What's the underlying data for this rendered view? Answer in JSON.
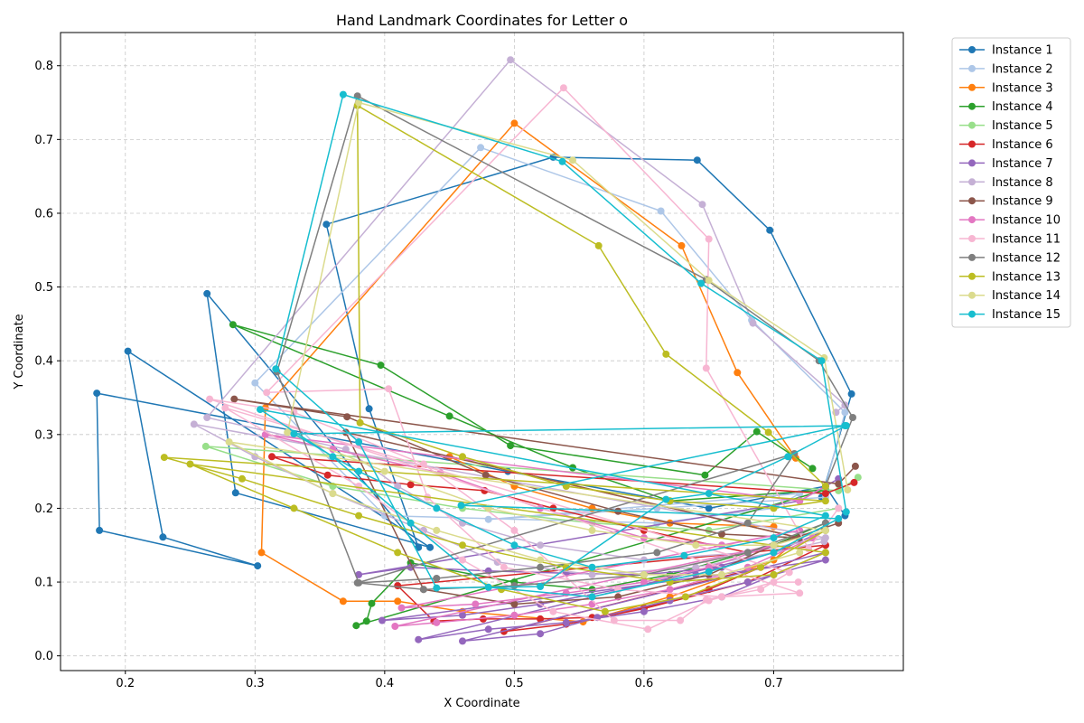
{
  "chart_data": {
    "type": "line",
    "title": "Hand Landmark Coordinates for Letter o",
    "xlabel": "X Coordinate",
    "ylabel": "Y Coordinate",
    "xlim": [
      0.15,
      0.8
    ],
    "ylim": [
      -0.02,
      0.845
    ],
    "xticks": [
      0.2,
      0.3,
      0.4,
      0.5,
      0.6,
      0.7
    ],
    "xtick_labels": [
      "0.2",
      "0.3",
      "0.4",
      "0.5",
      "0.6",
      "0.7"
    ],
    "yticks": [
      0.0,
      0.1,
      0.2,
      0.3,
      0.4,
      0.5,
      0.6,
      0.7,
      0.8
    ],
    "ytick_labels": [
      "0.0",
      "0.1",
      "0.2",
      "0.3",
      "0.4",
      "0.5",
      "0.6",
      "0.7",
      "0.8"
    ],
    "grid": true,
    "marker": "circle",
    "legend_position": "outside-right",
    "series": [
      {
        "name": "Instance 1",
        "color": "#1f77b4",
        "x": [
          0.737,
          0.76,
          0.697,
          0.641,
          0.53,
          0.355,
          0.388,
          0.426,
          0.263,
          0.285,
          0.435,
          0.202,
          0.229,
          0.302,
          0.18,
          0.178,
          0.495,
          0.65,
          0.74,
          0.755
        ],
        "y": [
          0.215,
          0.355,
          0.577,
          0.672,
          0.676,
          0.585,
          0.335,
          0.147,
          0.491,
          0.221,
          0.147,
          0.413,
          0.161,
          0.122,
          0.17,
          0.356,
          0.25,
          0.2,
          0.23,
          0.19
        ]
      },
      {
        "name": "Instance 2",
        "color": "#aec7e8",
        "x": [
          0.74,
          0.755,
          0.683,
          0.613,
          0.474,
          0.3,
          0.4,
          0.61,
          0.7,
          0.72,
          0.48,
          0.61,
          0.74
        ],
        "y": [
          0.23,
          0.33,
          0.455,
          0.603,
          0.689,
          0.37,
          0.19,
          0.18,
          0.2,
          0.22,
          0.185,
          0.2,
          0.215
        ]
      },
      {
        "name": "Instance 3",
        "color": "#ff7f0e",
        "x": [
          0.717,
          0.672,
          0.629,
          0.5,
          0.308,
          0.305,
          0.368,
          0.41,
          0.46,
          0.553,
          0.62,
          0.7,
          0.72,
          0.45,
          0.5,
          0.56,
          0.62,
          0.7
        ],
        "y": [
          0.268,
          0.384,
          0.556,
          0.722,
          0.336,
          0.14,
          0.074,
          0.074,
          0.06,
          0.046,
          0.08,
          0.13,
          0.16,
          0.27,
          0.23,
          0.2,
          0.18,
          0.175
        ]
      },
      {
        "name": "Instance 4",
        "color": "#2ca02c",
        "x": [
          0.73,
          0.687,
          0.647,
          0.497,
          0.397,
          0.283,
          0.45,
          0.545,
          0.62,
          0.74,
          0.378,
          0.386,
          0.39,
          0.42,
          0.5,
          0.56,
          0.62,
          0.7,
          0.74
        ],
        "y": [
          0.254,
          0.304,
          0.245,
          0.285,
          0.394,
          0.449,
          0.325,
          0.255,
          0.21,
          0.225,
          0.041,
          0.047,
          0.071,
          0.126,
          0.1,
          0.09,
          0.11,
          0.15,
          0.18
        ]
      },
      {
        "name": "Instance 5",
        "color": "#98df8a",
        "x": [
          0.765,
          0.75,
          0.262,
          0.36,
          0.46,
          0.56,
          0.65,
          0.75
        ],
        "y": [
          0.242,
          0.224,
          0.284,
          0.23,
          0.2,
          0.18,
          0.17,
          0.2
        ]
      },
      {
        "name": "Instance 6",
        "color": "#d62728",
        "x": [
          0.762,
          0.74,
          0.313,
          0.356,
          0.42,
          0.477,
          0.53,
          0.6,
          0.68,
          0.74,
          0.41,
          0.438,
          0.476,
          0.52,
          0.56,
          0.6,
          0.65,
          0.69,
          0.492,
          0.54,
          0.6,
          0.68,
          0.74
        ],
        "y": [
          0.235,
          0.22,
          0.27,
          0.245,
          0.232,
          0.224,
          0.2,
          0.17,
          0.14,
          0.15,
          0.095,
          0.047,
          0.05,
          0.05,
          0.052,
          0.065,
          0.09,
          0.12,
          0.033,
          0.043,
          0.064,
          0.1,
          0.15
        ]
      },
      {
        "name": "Instance 7",
        "color": "#9467bd",
        "x": [
          0.75,
          0.72,
          0.38,
          0.42,
          0.48,
          0.54,
          0.6,
          0.66,
          0.7,
          0.426,
          0.48,
          0.54,
          0.6,
          0.66,
          0.7,
          0.74,
          0.46,
          0.52,
          0.564,
          0.62,
          0.68,
          0.74,
          0.398,
          0.46,
          0.52,
          0.58,
          0.64,
          0.7,
          0.74
        ],
        "y": [
          0.24,
          0.21,
          0.11,
          0.12,
          0.115,
          0.112,
          0.11,
          0.12,
          0.14,
          0.022,
          0.036,
          0.045,
          0.06,
          0.08,
          0.11,
          0.14,
          0.02,
          0.03,
          0.052,
          0.075,
          0.1,
          0.13,
          0.048,
          0.055,
          0.07,
          0.09,
          0.11,
          0.14,
          0.17
        ]
      },
      {
        "name": "Instance 8",
        "color": "#c5b0d5",
        "x": [
          0.748,
          0.755,
          0.684,
          0.645,
          0.497,
          0.263,
          0.37,
          0.41,
          0.46,
          0.52,
          0.6,
          0.68,
          0.74,
          0.253,
          0.3,
          0.36,
          0.43,
          0.487,
          0.56,
          0.64,
          0.7,
          0.739
        ],
        "y": [
          0.33,
          0.34,
          0.451,
          0.612,
          0.808,
          0.323,
          0.28,
          0.23,
          0.18,
          0.15,
          0.13,
          0.14,
          0.16,
          0.314,
          0.27,
          0.22,
          0.17,
          0.127,
          0.11,
          0.12,
          0.14,
          0.155
        ]
      },
      {
        "name": "Instance 9",
        "color": "#8c564b",
        "x": [
          0.763,
          0.75,
          0.284,
          0.371,
          0.478,
          0.58,
          0.66,
          0.72,
          0.37,
          0.43,
          0.5,
          0.58,
          0.65,
          0.7,
          0.75
        ],
        "y": [
          0.257,
          0.233,
          0.348,
          0.324,
          0.245,
          0.196,
          0.165,
          0.16,
          0.303,
          0.09,
          0.07,
          0.08,
          0.11,
          0.15,
          0.18
        ]
      },
      {
        "name": "Instance 10",
        "color": "#e377c2",
        "x": [
          0.74,
          0.72,
          0.308,
          0.36,
          0.443,
          0.52,
          0.6,
          0.66,
          0.72,
          0.413,
          0.47,
          0.54,
          0.6,
          0.65,
          0.7,
          0.408,
          0.44,
          0.5,
          0.56,
          0.62,
          0.68,
          0.73
        ],
        "y": [
          0.23,
          0.21,
          0.3,
          0.28,
          0.248,
          0.2,
          0.16,
          0.15,
          0.17,
          0.065,
          0.07,
          0.085,
          0.1,
          0.12,
          0.15,
          0.04,
          0.045,
          0.055,
          0.07,
          0.09,
          0.12,
          0.16
        ]
      },
      {
        "name": "Instance 11",
        "color": "#f7b6d2",
        "x": [
          0.75,
          0.727,
          0.648,
          0.65,
          0.538,
          0.309,
          0.403,
          0.433,
          0.492,
          0.58,
          0.66,
          0.72,
          0.265,
          0.33,
          0.43,
          0.5,
          0.577,
          0.628,
          0.648,
          0.69,
          0.712,
          0.277,
          0.38,
          0.46,
          0.53,
          0.603,
          0.65,
          0.7,
          0.719
        ],
        "y": [
          0.2,
          0.145,
          0.39,
          0.565,
          0.77,
          0.357,
          0.362,
          0.215,
          0.12,
          0.09,
          0.08,
          0.085,
          0.348,
          0.33,
          0.26,
          0.17,
          0.048,
          0.048,
          0.076,
          0.09,
          0.113,
          0.336,
          0.23,
          0.13,
          0.06,
          0.036,
          0.075,
          0.1,
          0.1
        ]
      },
      {
        "name": "Instance 12",
        "color": "#7f7f7f",
        "x": [
          0.74,
          0.761,
          0.735,
          0.648,
          0.379,
          0.317,
          0.38,
          0.44,
          0.52,
          0.61,
          0.68,
          0.716,
          0.379,
          0.43,
          0.5,
          0.6,
          0.68,
          0.74
        ],
        "y": [
          0.23,
          0.323,
          0.4,
          0.51,
          0.759,
          0.385,
          0.099,
          0.105,
          0.12,
          0.14,
          0.18,
          0.274,
          0.099,
          0.09,
          0.095,
          0.11,
          0.14,
          0.18
        ]
      },
      {
        "name": "Instance 13",
        "color": "#bcbd22",
        "x": [
          0.74,
          0.696,
          0.617,
          0.565,
          0.379,
          0.381,
          0.46,
          0.54,
          0.62,
          0.7,
          0.74,
          0.23,
          0.29,
          0.38,
          0.46,
          0.54,
          0.62,
          0.7,
          0.74,
          0.25,
          0.33,
          0.41,
          0.49,
          0.57,
          0.632,
          0.69,
          0.74
        ],
        "y": [
          0.23,
          0.303,
          0.409,
          0.556,
          0.746,
          0.316,
          0.27,
          0.23,
          0.21,
          0.2,
          0.21,
          0.269,
          0.24,
          0.19,
          0.15,
          0.12,
          0.1,
          0.11,
          0.14,
          0.26,
          0.2,
          0.14,
          0.09,
          0.06,
          0.08,
          0.12,
          0.17
        ]
      },
      {
        "name": "Instance 14",
        "color": "#dbdb8d",
        "x": [
          0.757,
          0.739,
          0.65,
          0.545,
          0.38,
          0.325,
          0.4,
          0.48,
          0.56,
          0.64,
          0.7,
          0.74,
          0.28,
          0.36,
          0.44,
          0.52,
          0.6,
          0.66,
          0.72
        ],
        "y": [
          0.225,
          0.404,
          0.509,
          0.672,
          0.75,
          0.303,
          0.25,
          0.2,
          0.17,
          0.15,
          0.15,
          0.17,
          0.29,
          0.22,
          0.17,
          0.13,
          0.11,
          0.11,
          0.14
        ]
      },
      {
        "name": "Instance 15",
        "color": "#17becf",
        "x": [
          0.756,
          0.737,
          0.644,
          0.537,
          0.368,
          0.316,
          0.38,
          0.44,
          0.52,
          0.617,
          0.65,
          0.711,
          0.756,
          0.33,
          0.38,
          0.44,
          0.5,
          0.56,
          0.631,
          0.7,
          0.74,
          0.304,
          0.36,
          0.42,
          0.48,
          0.56,
          0.65,
          0.7,
          0.75,
          0.459,
          0.755
        ],
        "y": [
          0.195,
          0.4,
          0.505,
          0.67,
          0.761,
          0.389,
          0.29,
          0.092,
          0.094,
          0.212,
          0.22,
          0.27,
          0.312,
          0.301,
          0.25,
          0.2,
          0.15,
          0.12,
          0.136,
          0.16,
          0.19,
          0.334,
          0.27,
          0.18,
          0.093,
          0.08,
          0.114,
          0.14,
          0.186,
          0.204,
          0.312
        ]
      }
    ]
  }
}
